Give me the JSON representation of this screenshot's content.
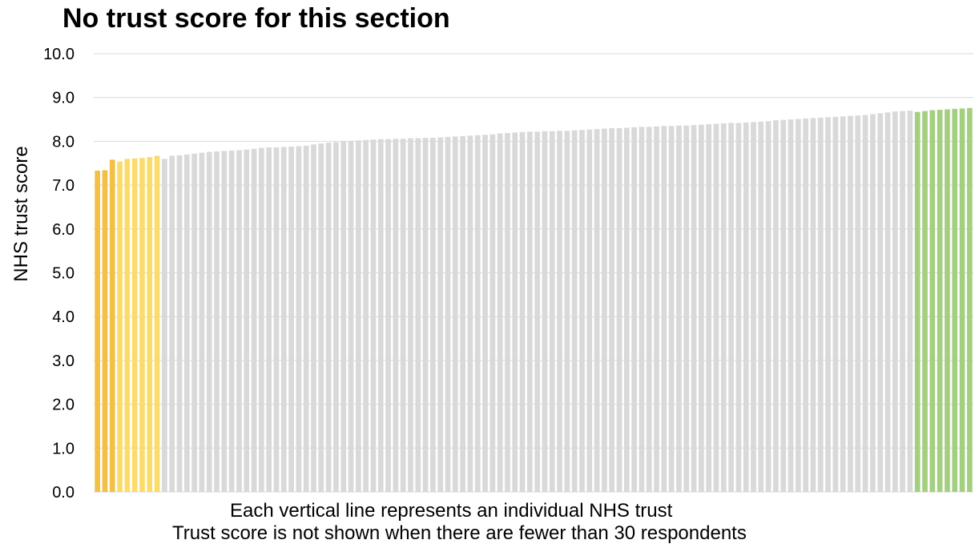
{
  "chart_data": {
    "type": "bar",
    "title": "No trust score for this section",
    "ylabel": "NHS trust score",
    "xlabel": "",
    "ylim": [
      0,
      10
    ],
    "y_ticks": [
      "0.0",
      "1.0",
      "2.0",
      "3.0",
      "4.0",
      "5.0",
      "6.0",
      "7.0",
      "8.0",
      "9.0",
      "10.0"
    ],
    "grid": true,
    "notes": [
      "Each vertical line represents an individual NHS trust",
      "Trust score is not shown when there are fewer than 30 respondents"
    ],
    "colors": {
      "lowest": "#F2BF47",
      "low": "#FADC6B",
      "middle": "#D9D9D9",
      "highest": "#A4CF80",
      "grid": "#D9D9D9"
    },
    "values": [
      7.33,
      7.34,
      7.58,
      7.54,
      7.6,
      7.61,
      7.62,
      7.64,
      7.67,
      7.6,
      7.67,
      7.68,
      7.7,
      7.72,
      7.74,
      7.76,
      7.77,
      7.78,
      7.79,
      7.8,
      7.81,
      7.83,
      7.85,
      7.86,
      7.86,
      7.87,
      7.88,
      7.89,
      7.9,
      7.93,
      7.95,
      7.97,
      7.98,
      8.0,
      8.01,
      8.02,
      8.03,
      8.04,
      8.05,
      8.05,
      8.06,
      8.06,
      8.07,
      8.07,
      8.08,
      8.08,
      8.09,
      8.1,
      8.11,
      8.12,
      8.13,
      8.14,
      8.15,
      8.16,
      8.18,
      8.19,
      8.2,
      8.21,
      8.22,
      8.22,
      8.23,
      8.23,
      8.24,
      8.24,
      8.25,
      8.26,
      8.27,
      8.28,
      8.29,
      8.3,
      8.3,
      8.31,
      8.32,
      8.33,
      8.33,
      8.34,
      8.35,
      8.35,
      8.36,
      8.36,
      8.37,
      8.38,
      8.39,
      8.4,
      8.41,
      8.42,
      8.42,
      8.43,
      8.44,
      8.45,
      8.46,
      8.48,
      8.49,
      8.5,
      8.51,
      8.52,
      8.53,
      8.54,
      8.55,
      8.56,
      8.57,
      8.58,
      8.59,
      8.6,
      8.62,
      8.64,
      8.66,
      8.68,
      8.69,
      8.7,
      8.67,
      8.69,
      8.71,
      8.72,
      8.73,
      8.74,
      8.75,
      8.76
    ],
    "groups": {
      "lowest_count": 3,
      "low_count": 6,
      "highest_count": 8
    }
  }
}
